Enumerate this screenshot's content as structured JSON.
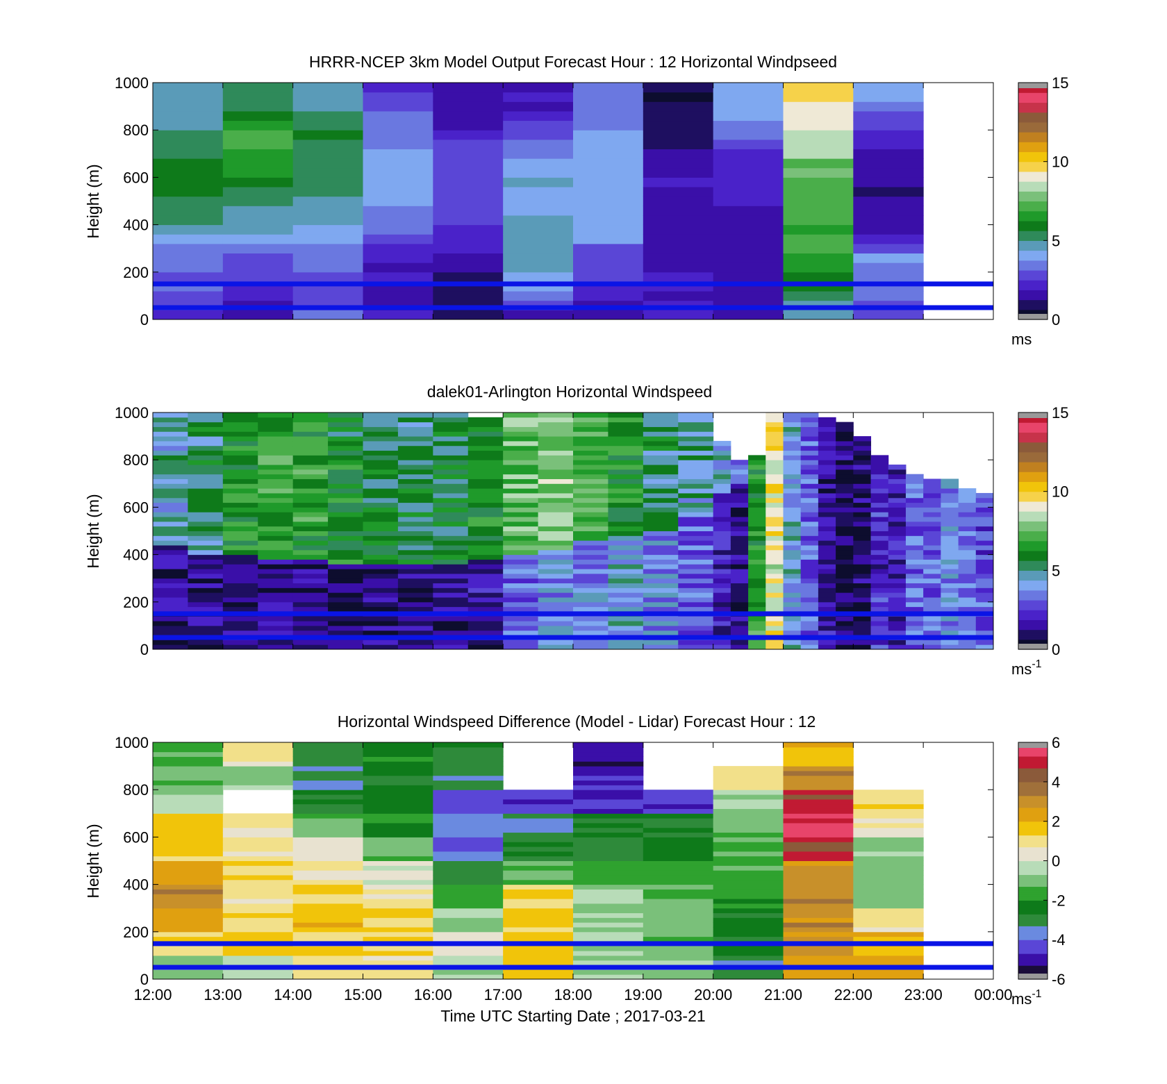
{
  "palettes": {
    "speed": [
      "#0d0d2e",
      "#1e0f60",
      "#3a0fa8",
      "#4a22c9",
      "#5a46d6",
      "#6a78e0",
      "#7fa8f0",
      "#5a9bb8",
      "#2f8a5a",
      "#0e7a1a",
      "#1f9a2a",
      "#4aae4a",
      "#7ac07a",
      "#b8dcb8",
      "#efe9d6",
      "#f6d24a",
      "#f1c40a",
      "#e0a010",
      "#c08020",
      "#9a6a3a",
      "#8b5a3a",
      "#c7334a",
      "#e8446a",
      "#c11a33"
    ],
    "diff": [
      "#1a0d3a",
      "#3a0fa8",
      "#5a46d6",
      "#6a8ae0",
      "#2e8a3a",
      "#0e7a1a",
      "#2fa22f",
      "#7ac07a",
      "#b8dcb8",
      "#e8e2d0",
      "#f2e08a",
      "#f1c40a",
      "#e0a010",
      "#c8902a",
      "#a0703a",
      "#8b5a3a",
      "#c11a33",
      "#e8446a"
    ]
  },
  "chart_data": [
    {
      "type": "heatmap",
      "title": "HRRR-NCEP 3km Model Output   Forecast Hour : 12 Horizontal Windpseed",
      "ylabel": "Height (m)",
      "xlabel": "",
      "ylim": [
        0,
        1000
      ],
      "yticks": [
        "0",
        "200",
        "400",
        "600",
        "800",
        "1000"
      ],
      "xlim_hours": [
        12,
        24
      ],
      "xticks": [
        "12:00",
        "13:00",
        "14:00",
        "15:00",
        "16:00",
        "17:00",
        "18:00",
        "19:00",
        "20:00",
        "21:00",
        "22:00",
        "23:00",
        "00:00"
      ],
      "colorbar": {
        "range": [
          0,
          15
        ],
        "ticks": [
          "0",
          "5",
          "10",
          "15"
        ],
        "unit": "ms",
        "unit_sup": ""
      },
      "reference_lines_m": [
        50,
        150
      ],
      "hours": [
        "12:00",
        "13:00",
        "14:00",
        "15:00",
        "16:00",
        "17:00",
        "18:00",
        "19:00",
        "20:00",
        "21:00",
        "22:00"
      ],
      "windspeed_profiles": [
        [
          2.5,
          3.0,
          3.4,
          4.6,
          5.6,
          6.0,
          5.2,
          4.8,
          4.5
        ],
        [
          1.8,
          2.4,
          3.3,
          4.4,
          5.4,
          6.6,
          7.2,
          5.4,
          4.6
        ],
        [
          3.2,
          2.8,
          3.6,
          4.3,
          5.0,
          5.2,
          5.6,
          4.8,
          4.4
        ],
        [
          2.2,
          1.6,
          2.3,
          3.4,
          3.8,
          4.3,
          3.7,
          3.2,
          2.2
        ],
        [
          1.4,
          0.6,
          1.6,
          2.5,
          2.7,
          3.0,
          2.2,
          1.1,
          1.7
        ],
        [
          2.0,
          4.0,
          4.5,
          4.6,
          4.5,
          4.4,
          2.9,
          1.9,
          2.0
        ],
        [
          1.6,
          2.3,
          3.0,
          4.1,
          4.2,
          4.3,
          4.0,
          3.2,
          3.0
        ],
        [
          2.0,
          2.0,
          1.7,
          1.5,
          1.6,
          1.8,
          1.0,
          0.9,
          0.6
        ],
        [
          1.6,
          1.6,
          1.6,
          1.6,
          1.9,
          2.0,
          3.0,
          4.1,
          4.3
        ],
        [
          4.3,
          6.0,
          6.7,
          7.0,
          7.3,
          7.6,
          8.6,
          9.2,
          9.4
        ],
        [
          3.0,
          3.4,
          3.6,
          1.4,
          1.1,
          1.3,
          2.2,
          3.4,
          4.5
        ]
      ]
    },
    {
      "type": "heatmap",
      "title": "dalek01-Arlington  Horizontal Windspeed",
      "ylabel": "Height (m)",
      "xlabel": "",
      "ylim": [
        0,
        1000
      ],
      "yticks": [
        "0",
        "200",
        "400",
        "600",
        "800",
        "1000"
      ],
      "xlim_hours": [
        12,
        24
      ],
      "colorbar": {
        "range": [
          0,
          15
        ],
        "ticks": [
          "0",
          "5",
          "10",
          "15"
        ],
        "unit": "ms",
        "unit_sup": "-1"
      },
      "reference_lines_m": [
        50,
        150
      ],
      "profile_times_h": [
        12.0,
        12.5,
        13.0,
        13.5,
        14.0,
        14.5,
        15.0,
        15.5,
        16.0,
        16.5,
        17.0,
        17.5,
        18.0,
        18.5,
        19.0,
        19.5,
        20.0,
        20.25,
        20.5,
        20.75,
        21.0,
        21.25,
        21.5,
        21.75,
        22.0,
        22.25,
        22.5,
        22.75,
        23.0,
        23.25,
        23.5,
        23.75
      ],
      "profile_tops_m": [
        1000,
        1000,
        1000,
        1000,
        1000,
        1000,
        1000,
        1000,
        1000,
        970,
        1000,
        1000,
        1000,
        1000,
        1000,
        1000,
        880,
        800,
        820,
        1000,
        1000,
        1000,
        980,
        960,
        900,
        820,
        780,
        740,
        720,
        710,
        680,
        660
      ],
      "low_layer_top_m": [
        430,
        400,
        390,
        380,
        370,
        360,
        360,
        350,
        360,
        370,
        400,
        420,
        450,
        480,
        500,
        560,
        650,
        700,
        0,
        0,
        0,
        0,
        0,
        0,
        0,
        0,
        0,
        0,
        0,
        0,
        0,
        0
      ],
      "low_layer_speed": [
        1.4,
        1.2,
        1.3,
        1.2,
        1.1,
        1.0,
        1.3,
        1.2,
        1.4,
        1.6,
        3.2,
        3.8,
        3.6,
        4.2,
        3.9,
        3.0,
        2.0,
        1.2,
        0,
        0,
        0,
        0,
        0,
        0,
        0,
        0,
        0,
        0,
        0,
        0,
        0,
        0
      ],
      "upper_layer_speed": [
        4.6,
        5.2,
        6.2,
        6.8,
        6.5,
        6.0,
        5.6,
        5.3,
        5.5,
        6.0,
        7.4,
        7.8,
        7.0,
        6.2,
        5.2,
        4.8,
        4.4,
        3.6,
        6.5,
        9.2,
        4.2,
        3.0,
        1.5,
        0.8,
        1.0,
        2.2,
        1.8,
        3.2,
        3.0,
        4.0,
        3.4,
        2.8
      ]
    },
    {
      "type": "heatmap",
      "title": "Horizontal Windspeed Difference (Model - Lidar) Forecast Hour : 12",
      "ylabel": "Height (m)",
      "xlabel": "Time UTC  Starting Date ; 2017-03-21",
      "ylim": [
        0,
        1000
      ],
      "yticks": [
        "0",
        "200",
        "400",
        "600",
        "800",
        "1000"
      ],
      "xlim_hours": [
        12,
        24
      ],
      "xticks": [
        "12:00",
        "13:00",
        "14:00",
        "15:00",
        "16:00",
        "17:00",
        "18:00",
        "19:00",
        "20:00",
        "21:00",
        "22:00",
        "23:00",
        "00:00"
      ],
      "colorbar": {
        "range": [
          -6,
          6
        ],
        "ticks": [
          "-6",
          "-4",
          "-2",
          "0",
          "2",
          "4",
          "6"
        ],
        "unit": "ms",
        "unit_sup": "-1"
      },
      "reference_lines_m": [
        50,
        150
      ],
      "hours": [
        "12:00",
        "13:00",
        "14:00",
        "15:00",
        "16:00",
        "17:00",
        "18:00",
        "19:00",
        "20:00",
        "21:00",
        "22:00"
      ],
      "difference_profiles": [
        [
          -0.6,
          1.2,
          2.4,
          3.0,
          2.2,
          1.6,
          1.6,
          -0.4,
          -1.2,
          -1.6
        ],
        [
          -0.4,
          1.6,
          1.2,
          0.8,
          1.2,
          0.6,
          0.8,
          null,
          -0.8,
          0.9
        ],
        [
          1.0,
          1.2,
          2.0,
          1.4,
          0.6,
          0.2,
          -1.2,
          -2.8,
          -3.0,
          -3.0
        ],
        [
          1.0,
          1.6,
          1.2,
          0.6,
          0.2,
          -1.2,
          -2.0,
          -2.2,
          -2.6,
          -2.2
        ],
        [
          -0.4,
          0.4,
          -0.8,
          -1.6,
          -3.0,
          -4.0,
          -3.4,
          -4.6,
          -3.2,
          -2.8
        ],
        [
          1.6,
          1.8,
          1.6,
          1.2,
          -1.4,
          -2.6,
          -3.2,
          -4.4,
          null,
          null
        ],
        [
          -0.4,
          -0.4,
          -0.6,
          -0.6,
          -1.6,
          -3.0,
          -2.6,
          -4.8,
          -5.0,
          -5.2
        ],
        [
          -0.8,
          -1.0,
          -1.0,
          -1.2,
          -1.6,
          -2.4,
          -2.8,
          -4.6,
          null,
          null
        ],
        [
          -3.2,
          -2.4,
          -2.4,
          -1.8,
          -1.6,
          -1.2,
          -1.0,
          -0.8,
          1.0,
          null
        ],
        [
          2.2,
          2.8,
          3.0,
          3.2,
          3.0,
          4.6,
          5.6,
          4.8,
          3.4,
          1.8
        ],
        [
          2.6,
          1.8,
          0.8,
          -0.8,
          -1.0,
          -0.8,
          0.6,
          1.2,
          null,
          null
        ]
      ]
    }
  ]
}
